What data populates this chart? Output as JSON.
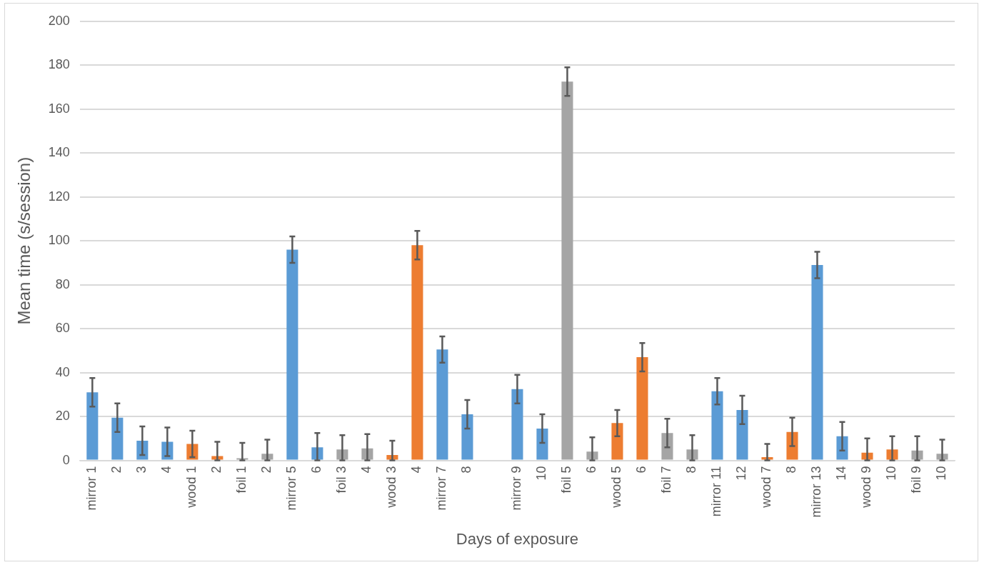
{
  "chart_data": {
    "type": "bar",
    "xlabel": "Days of exposure",
    "ylabel": "Mean time (s/session)",
    "categories": [
      "mirror 1",
      "2",
      "3",
      "4",
      "wood 1",
      "2",
      "foil 1",
      "2",
      "mirror 5",
      "6",
      "foil 3",
      "4",
      "wood 3",
      "4",
      "mirror 7",
      "8",
      null,
      "mirror 9",
      "10",
      "foil 5",
      "6",
      "wood 5",
      "6",
      "foil 7",
      "8",
      "mirror 11",
      "12",
      "wood 7",
      "8",
      "mirror 13",
      "14",
      "wood 9",
      "10",
      "foil 9",
      "10"
    ],
    "values": [
      31,
      19.5,
      9,
      8.5,
      7.5,
      2,
      1,
      3,
      96,
      6,
      5,
      5.5,
      2.5,
      98,
      50.5,
      21,
      null,
      32.5,
      14.5,
      172.5,
      4,
      17,
      47,
      12.5,
      5,
      31.5,
      23,
      1.5,
      13,
      89,
      11,
      3.5,
      5,
      4.5,
      3
    ],
    "errors": [
      [
        24.5,
        37.5
      ],
      [
        13,
        26
      ],
      [
        2.5,
        15.5
      ],
      [
        2,
        15
      ],
      [
        1.5,
        13.5
      ],
      [
        0,
        8.5
      ],
      [
        0,
        8
      ],
      [
        0,
        9.5
      ],
      [
        90,
        102
      ],
      [
        0,
        12.5
      ],
      [
        0,
        11.5
      ],
      [
        0,
        12
      ],
      [
        0,
        9
      ],
      [
        91.5,
        104.5
      ],
      [
        44.5,
        56.5
      ],
      [
        14.5,
        27.5
      ],
      null,
      [
        26,
        39
      ],
      [
        8,
        21
      ],
      [
        166,
        179
      ],
      [
        0,
        10.5
      ],
      [
        11,
        23
      ],
      [
        40.5,
        53.5
      ],
      [
        6,
        19
      ],
      [
        0,
        11.5
      ],
      [
        25.5,
        37.5
      ],
      [
        16.5,
        29.5
      ],
      [
        0,
        7.5
      ],
      [
        6.5,
        19.5
      ],
      [
        83,
        95
      ],
      [
        4.5,
        17.5
      ],
      [
        0,
        10
      ],
      [
        0,
        11
      ],
      [
        0,
        11
      ],
      [
        0,
        9.5
      ]
    ],
    "colors": [
      "#5b9bd5",
      "#5b9bd5",
      "#5b9bd5",
      "#5b9bd5",
      "#ed7d31",
      "#ed7d31",
      "#a5a5a5",
      "#a5a5a5",
      "#5b9bd5",
      "#5b9bd5",
      "#a5a5a5",
      "#a5a5a5",
      "#ed7d31",
      "#ed7d31",
      "#5b9bd5",
      "#5b9bd5",
      "#5b9bd5",
      "#5b9bd5",
      "#5b9bd5",
      "#a5a5a5",
      "#a5a5a5",
      "#ed7d31",
      "#ed7d31",
      "#a5a5a5",
      "#a5a5a5",
      "#5b9bd5",
      "#5b9bd5",
      "#ed7d31",
      "#ed7d31",
      "#5b9bd5",
      "#5b9bd5",
      "#ed7d31",
      "#ed7d31",
      "#a5a5a5",
      "#a5a5a5"
    ],
    "ylim": [
      0,
      200
    ],
    "yticks": [
      0,
      20,
      40,
      60,
      80,
      100,
      120,
      140,
      160,
      180,
      200
    ],
    "grid": "y"
  }
}
